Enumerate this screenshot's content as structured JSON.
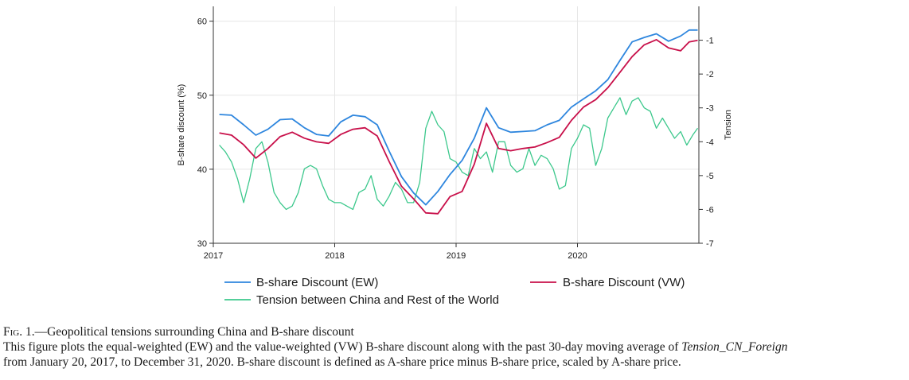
{
  "chart_data": {
    "type": "line",
    "ylabel": "B-share discount (%)",
    "y2label": "Tension",
    "x_ticks": [
      "2017",
      "2018",
      "2019",
      "2020"
    ],
    "xlim": [
      2017.0,
      2021.0
    ],
    "ylim": [
      30,
      62
    ],
    "y_ticks": [
      30,
      40,
      50,
      60
    ],
    "y2lim": [
      -7.0,
      0.0
    ],
    "y2_ticks": [
      -1,
      -2,
      -3,
      -4,
      -5,
      -6,
      -7
    ],
    "grid": true,
    "legend_position": "bottom",
    "colors": {
      "ew": "#2e86de",
      "vw": "#c8104a",
      "tension": "#3cc88c"
    },
    "series": [
      {
        "key": "ew",
        "name": "B-share Discount (EW)",
        "axis": "left",
        "x": [
          2017.05,
          2017.15,
          2017.25,
          2017.35,
          2017.45,
          2017.55,
          2017.65,
          2017.75,
          2017.85,
          2017.95,
          2018.05,
          2018.15,
          2018.25,
          2018.35,
          2018.45,
          2018.55,
          2018.65,
          2018.75,
          2018.85,
          2018.95,
          2019.05,
          2019.15,
          2019.25,
          2019.35,
          2019.45,
          2019.55,
          2019.65,
          2019.75,
          2019.85,
          2019.95,
          2020.05,
          2020.15,
          2020.25,
          2020.35,
          2020.45,
          2020.55,
          2020.65,
          2020.75,
          2020.85,
          2020.92,
          2020.99
        ],
        "values": [
          47.4,
          47.3,
          46.0,
          44.6,
          45.4,
          46.7,
          46.8,
          45.6,
          44.7,
          44.5,
          46.4,
          47.3,
          47.1,
          46.0,
          42.4,
          39.0,
          36.8,
          35.2,
          37.0,
          39.3,
          41.2,
          44.2,
          48.3,
          45.6,
          45.0,
          45.1,
          45.2,
          46.0,
          46.6,
          48.4,
          49.5,
          50.6,
          52.1,
          54.7,
          57.2,
          57.8,
          58.3,
          57.3,
          58.0,
          58.8,
          58.8
        ]
      },
      {
        "key": "vw",
        "name": "B-share Discount (VW)",
        "axis": "left",
        "x": [
          2017.05,
          2017.15,
          2017.25,
          2017.35,
          2017.45,
          2017.55,
          2017.65,
          2017.75,
          2017.85,
          2017.95,
          2018.05,
          2018.15,
          2018.25,
          2018.35,
          2018.45,
          2018.55,
          2018.65,
          2018.75,
          2018.85,
          2018.95,
          2019.05,
          2019.15,
          2019.25,
          2019.35,
          2019.45,
          2019.55,
          2019.65,
          2019.75,
          2019.85,
          2019.95,
          2020.05,
          2020.15,
          2020.25,
          2020.35,
          2020.45,
          2020.55,
          2020.65,
          2020.75,
          2020.85,
          2020.92,
          2020.99
        ],
        "values": [
          44.9,
          44.6,
          43.3,
          41.5,
          42.8,
          44.4,
          45.0,
          44.2,
          43.7,
          43.5,
          44.7,
          45.4,
          45.6,
          44.5,
          41.0,
          37.7,
          36.0,
          34.1,
          34.0,
          36.3,
          37.0,
          40.7,
          46.2,
          42.8,
          42.5,
          42.8,
          43.0,
          43.6,
          44.3,
          46.6,
          48.4,
          49.4,
          51.0,
          53.1,
          55.2,
          56.8,
          57.5,
          56.4,
          56.0,
          57.2,
          57.4
        ]
      },
      {
        "key": "tension",
        "name": "Tension between China and Rest of the World",
        "axis": "right",
        "x": [
          2017.05,
          2017.1,
          2017.15,
          2017.2,
          2017.25,
          2017.3,
          2017.35,
          2017.4,
          2017.45,
          2017.5,
          2017.55,
          2017.6,
          2017.65,
          2017.7,
          2017.75,
          2017.8,
          2017.85,
          2017.9,
          2017.95,
          2018.0,
          2018.05,
          2018.1,
          2018.15,
          2018.2,
          2018.25,
          2018.3,
          2018.35,
          2018.4,
          2018.45,
          2018.5,
          2018.55,
          2018.6,
          2018.65,
          2018.7,
          2018.75,
          2018.8,
          2018.85,
          2018.9,
          2018.95,
          2019.0,
          2019.05,
          2019.1,
          2019.15,
          2019.2,
          2019.25,
          2019.3,
          2019.35,
          2019.4,
          2019.45,
          2019.5,
          2019.55,
          2019.6,
          2019.65,
          2019.7,
          2019.75,
          2019.8,
          2019.85,
          2019.9,
          2019.95,
          2020.0,
          2020.05,
          2020.1,
          2020.15,
          2020.2,
          2020.25,
          2020.3,
          2020.35,
          2020.4,
          2020.45,
          2020.5,
          2020.55,
          2020.6,
          2020.65,
          2020.7,
          2020.75,
          2020.8,
          2020.85,
          2020.9,
          2020.95,
          2020.99
        ],
        "values": [
          -4.1,
          -4.3,
          -4.6,
          -5.1,
          -5.8,
          -5.1,
          -4.2,
          -4.0,
          -4.6,
          -5.5,
          -5.8,
          -6.0,
          -5.9,
          -5.5,
          -4.8,
          -4.7,
          -4.8,
          -5.3,
          -5.7,
          -5.8,
          -5.8,
          -5.9,
          -6.0,
          -5.5,
          -5.4,
          -5.0,
          -5.7,
          -5.9,
          -5.6,
          -5.2,
          -5.4,
          -5.8,
          -5.8,
          -5.2,
          -3.6,
          -3.1,
          -3.5,
          -3.7,
          -4.5,
          -4.6,
          -4.9,
          -5.0,
          -4.2,
          -4.5,
          -4.3,
          -4.9,
          -4.0,
          -4.0,
          -4.7,
          -4.9,
          -4.8,
          -4.2,
          -4.7,
          -4.4,
          -4.5,
          -4.8,
          -5.4,
          -5.3,
          -4.2,
          -3.9,
          -3.5,
          -3.6,
          -4.7,
          -4.2,
          -3.3,
          -3.0,
          -2.7,
          -3.2,
          -2.8,
          -2.7,
          -3.0,
          -3.1,
          -3.6,
          -3.3,
          -3.6,
          -3.9,
          -3.7,
          -4.1,
          -3.8,
          -3.6
        ]
      }
    ]
  },
  "caption": {
    "fig_tag": "Fig. 1.",
    "title": "—Geopolitical tensions surrounding China and B-share discount",
    "text_part1": "This figure plots the equal-weighted (EW) and the value-weighted (VW) B-share discount along with the past 30-day moving average of ",
    "italic_var": "Tension_CN_Foreign",
    "text_part2": "from January 20, 2017, to December 31, 2020. B-share discount is defined as A-share price minus B-share price, scaled by A-share price."
  }
}
